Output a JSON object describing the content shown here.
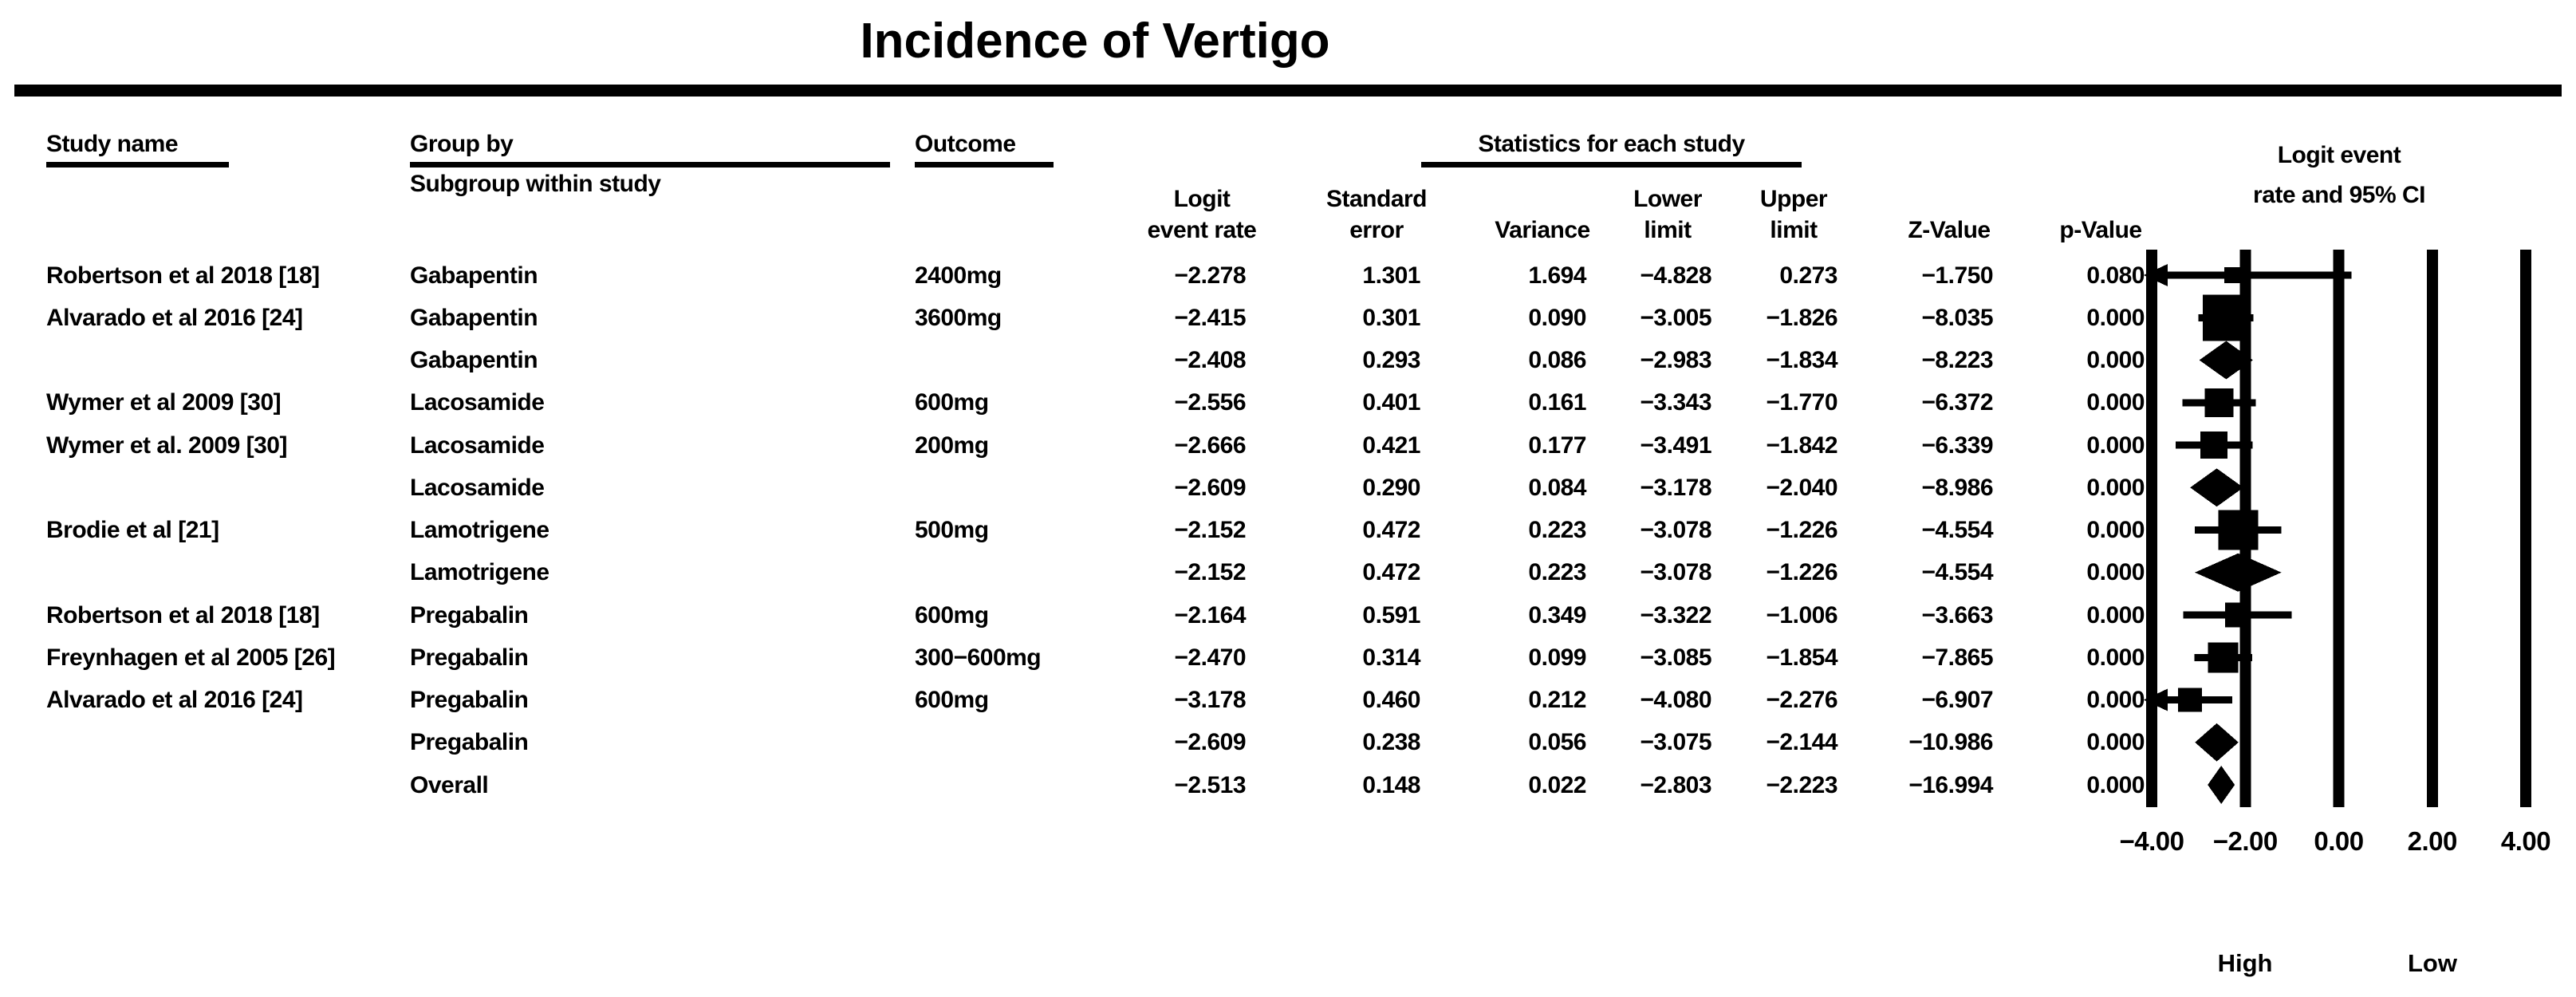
{
  "title": "Incidence of Vertigo",
  "columns": {
    "study": "Study name",
    "group_by": "Group by",
    "subgroup": "Subgroup within study",
    "outcome": "Outcome",
    "stats_header": "Statistics for each study",
    "stat_cols": [
      {
        "line1": "Logit",
        "line2": "event rate"
      },
      {
        "line1": "Standard",
        "line2": "error"
      },
      {
        "line1": "",
        "line2": "Variance"
      },
      {
        "line1": "Lower",
        "line2": "limit"
      },
      {
        "line1": "Upper",
        "line2": "limit"
      },
      {
        "line1": "",
        "line2": "Z-Value"
      },
      {
        "line1": "",
        "line2": "p-Value"
      }
    ],
    "plot_header_line1": "Logit event",
    "plot_header_line2": "rate and 95% CI"
  },
  "chart_data": {
    "type": "forest",
    "title": "Incidence of Vertigo",
    "xlabel_ticks": [
      "−4.00",
      "−2.00",
      "0.00",
      "2.00",
      "4.00"
    ],
    "x_ticks": [
      -4,
      -2,
      0,
      2,
      4
    ],
    "xlim": [
      -4,
      4
    ],
    "left_direction_label": "High",
    "right_direction_label": "Low",
    "rows": [
      {
        "study": "Robertson et al 2018 [18]",
        "group": "Gabapentin",
        "outcome": "2400mg",
        "logit": -2.278,
        "se": 1.301,
        "variance": 1.694,
        "lower": -4.828,
        "upper": 0.273,
        "z": -1.75,
        "p": 0.08,
        "kind": "study",
        "marker": 20
      },
      {
        "study": "Alvarado et al 2016 [24]",
        "group": "Gabapentin",
        "outcome": "3600mg",
        "logit": -2.415,
        "se": 0.301,
        "variance": 0.09,
        "lower": -3.005,
        "upper": -1.826,
        "z": -8.035,
        "p": 0.0,
        "kind": "study",
        "marker": 58
      },
      {
        "study": "",
        "group": "Gabapentin",
        "outcome": "",
        "logit": -2.408,
        "se": 0.293,
        "variance": 0.086,
        "lower": -2.983,
        "upper": -1.834,
        "z": -8.223,
        "p": 0.0,
        "kind": "summary",
        "marker": 0
      },
      {
        "study": "Wymer et al 2009 [30]",
        "group": "Lacosamide",
        "outcome": "600mg",
        "logit": -2.556,
        "se": 0.401,
        "variance": 0.161,
        "lower": -3.343,
        "upper": -1.77,
        "z": -6.372,
        "p": 0.0,
        "kind": "study",
        "marker": 36
      },
      {
        "study": "Wymer et al. 2009 [30]",
        "group": "Lacosamide",
        "outcome": "200mg",
        "logit": -2.666,
        "se": 0.421,
        "variance": 0.177,
        "lower": -3.491,
        "upper": -1.842,
        "z": -6.339,
        "p": 0.0,
        "kind": "study",
        "marker": 34
      },
      {
        "study": "",
        "group": "Lacosamide",
        "outcome": "",
        "logit": -2.609,
        "se": 0.29,
        "variance": 0.084,
        "lower": -3.178,
        "upper": -2.04,
        "z": -8.986,
        "p": 0.0,
        "kind": "summary",
        "marker": 0
      },
      {
        "study": "Brodie et al [21]",
        "group": "Lamotrigene",
        "outcome": "500mg",
        "logit": -2.152,
        "se": 0.472,
        "variance": 0.223,
        "lower": -3.078,
        "upper": -1.226,
        "z": -4.554,
        "p": 0.0,
        "kind": "study",
        "marker": 50
      },
      {
        "study": "",
        "group": "Lamotrigene",
        "outcome": "",
        "logit": -2.152,
        "se": 0.472,
        "variance": 0.223,
        "lower": -3.078,
        "upper": -1.226,
        "z": -4.554,
        "p": 0.0,
        "kind": "summary",
        "marker": 0
      },
      {
        "study": "Robertson et al 2018 [18]",
        "group": "Pregabalin",
        "outcome": "600mg",
        "logit": -2.164,
        "se": 0.591,
        "variance": 0.349,
        "lower": -3.322,
        "upper": -1.006,
        "z": -3.663,
        "p": 0.0,
        "kind": "study",
        "marker": 31
      },
      {
        "study": "Freynhagen et al 2005 [26]",
        "group": "Pregabalin",
        "outcome": "300−600mg",
        "logit": -2.47,
        "se": 0.314,
        "variance": 0.099,
        "lower": -3.085,
        "upper": -1.854,
        "z": -7.865,
        "p": 0.0,
        "kind": "study",
        "marker": 38
      },
      {
        "study": "Alvarado et al 2016 [24]",
        "group": "Pregabalin",
        "outcome": "600mg",
        "logit": -3.178,
        "se": 0.46,
        "variance": 0.212,
        "lower": -4.08,
        "upper": -2.276,
        "z": -6.907,
        "p": 0.0,
        "kind": "study",
        "marker": 30
      },
      {
        "study": "",
        "group": "Pregabalin",
        "outcome": "",
        "logit": -2.609,
        "se": 0.238,
        "variance": 0.056,
        "lower": -3.075,
        "upper": -2.144,
        "z": -10.986,
        "p": 0.0,
        "kind": "summary",
        "marker": 0
      },
      {
        "study": "",
        "group": "Overall",
        "outcome": "",
        "logit": -2.513,
        "se": 0.148,
        "variance": 0.022,
        "lower": -2.803,
        "upper": -2.223,
        "z": -16.994,
        "p": 0.0,
        "kind": "summary",
        "marker": 0
      }
    ]
  }
}
